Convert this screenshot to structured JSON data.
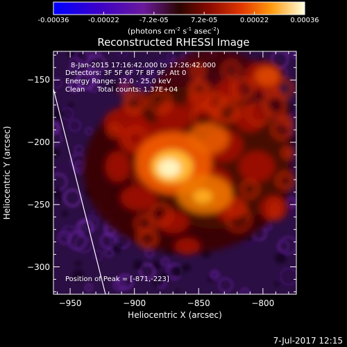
{
  "colorbar": {
    "tick_labels": [
      "-0.00036",
      "-0.00022",
      "-7.2e-05",
      "7.2e-05",
      "0.00022",
      "0.00036"
    ],
    "units_label": "(photons cm",
    "units_exp1": "-2",
    "units_mid": " s",
    "units_exp2": "-1",
    "units_mid2": " asec",
    "units_exp3": "-2",
    "units_end": ")",
    "range": [
      -0.00036,
      0.00036
    ]
  },
  "title": "Reconstructed RHESSI Image",
  "annotations": {
    "time_range": "8-Jan-2015 17:16:42.000 to 17:26:42.000",
    "detectors": "Detectors: 3F 5F 6F 7F 8F 9F, Att 0",
    "energy_range": "Energy Range: 12.0 - 25.0 keV",
    "method": "Clean",
    "total_counts": "Total counts: 1.37E+04",
    "peak_position": "Position of Peak = [-871,-223]"
  },
  "axes": {
    "x_label": "Heliocentric X (arcsec)",
    "y_label": "Heliocentric Y (arcsec)",
    "x_ticks": [
      -950,
      -900,
      -850,
      -800
    ],
    "y_ticks": [
      -150,
      -200,
      -250,
      -300
    ],
    "x_tick_labels": [
      "−950",
      "−900",
      "−850",
      "−800"
    ],
    "y_tick_labels": [
      "−150",
      "−200",
      "−250",
      "−300"
    ],
    "x_range": [
      -963,
      -774
    ],
    "y_range": [
      -322,
      -127
    ]
  },
  "footer_date": "7-Jul-2017 12:15",
  "colors": {
    "background": "#000000",
    "foreground": "#ffffff",
    "limb_line": "#ffffff"
  }
}
